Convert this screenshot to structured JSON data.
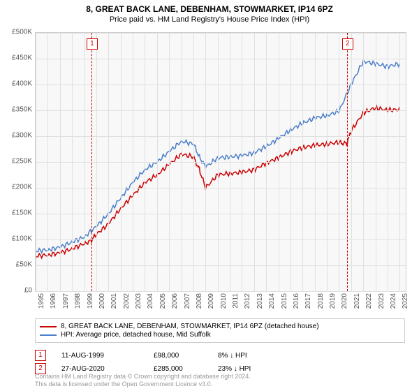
{
  "title": "8, GREAT BACK LANE, DEBENHAM, STOWMARKET, IP14 6PZ",
  "subtitle": "Price paid vs. HM Land Registry's House Price Index (HPI)",
  "chart": {
    "type": "line",
    "background_color": "#f8f8f8",
    "grid_color": "#e0e0e0",
    "border_color": "#cccccc",
    "xlim": [
      1995,
      2025.5
    ],
    "ylim": [
      0,
      500000
    ],
    "ytick_step": 50000,
    "yticks": [
      "£0",
      "£50K",
      "£100K",
      "£150K",
      "£200K",
      "£250K",
      "£300K",
      "£350K",
      "£400K",
      "£450K",
      "£500K"
    ],
    "xticks": [
      1995,
      1996,
      1997,
      1998,
      1999,
      2000,
      2001,
      2002,
      2003,
      2004,
      2005,
      2006,
      2007,
      2008,
      2009,
      2010,
      2011,
      2012,
      2013,
      2014,
      2015,
      2016,
      2017,
      2018,
      2019,
      2020,
      2021,
      2022,
      2023,
      2024,
      2025
    ],
    "series": [
      {
        "name": "property",
        "label": "8, GREAT BACK LANE, DEBENHAM, STOWMARKET, IP14 6PZ (detached house)",
        "color": "#cc0000",
        "line_width": 1.5,
        "x": [
          1995,
          1996,
          1997,
          1998,
          1999,
          1999.6,
          2000,
          2001,
          2002,
          2003,
          2004,
          2005,
          2006,
          2007,
          2008,
          2008.5,
          2009,
          2010,
          2011,
          2012,
          2013,
          2014,
          2015,
          2016,
          2017,
          2018,
          2019,
          2020,
          2020.65,
          2021,
          2022,
          2023,
          2024,
          2025
        ],
        "y": [
          68000,
          70000,
          74000,
          82000,
          92000,
          98000,
          110000,
          130000,
          160000,
          185000,
          210000,
          225000,
          245000,
          265000,
          260000,
          235000,
          200000,
          225000,
          228000,
          230000,
          235000,
          248000,
          258000,
          270000,
          278000,
          282000,
          285000,
          288000,
          285000,
          310000,
          345000,
          355000,
          350000,
          352000
        ]
      },
      {
        "name": "hpi",
        "label": "HPI: Average price, detached house, Mid Suffolk",
        "color": "#4a7fc9",
        "line_width": 1.5,
        "x": [
          1995,
          1996,
          1997,
          1998,
          1999,
          2000,
          2001,
          2002,
          2003,
          2004,
          2005,
          2006,
          2007,
          2008,
          2008.5,
          2009,
          2010,
          2011,
          2012,
          2013,
          2014,
          2015,
          2016,
          2017,
          2018,
          2019,
          2020,
          2021,
          2022,
          2023,
          2024,
          2025
        ],
        "y": [
          78000,
          80000,
          85000,
          95000,
          105000,
          125000,
          150000,
          180000,
          210000,
          235000,
          250000,
          270000,
          290000,
          285000,
          260000,
          240000,
          258000,
          260000,
          262000,
          268000,
          280000,
          295000,
          312000,
          325000,
          335000,
          340000,
          348000,
          400000,
          445000,
          440000,
          435000,
          440000
        ]
      }
    ],
    "markers": [
      {
        "id": "1",
        "x": 1999.6,
        "color": "#cc0000"
      },
      {
        "id": "2",
        "x": 2020.65,
        "color": "#cc0000"
      }
    ]
  },
  "legend": {
    "border_color": "#cccccc"
  },
  "sales": [
    {
      "id": "1",
      "date": "11-AUG-1999",
      "price": "£98,000",
      "diff": "8% ↓ HPI"
    },
    {
      "id": "2",
      "date": "27-AUG-2020",
      "price": "£285,000",
      "diff": "23% ↓ HPI"
    }
  ],
  "footer_line1": "Contains HM Land Registry data © Crown copyright and database right 2024.",
  "footer_line2": "This data is licensed under the Open Government Licence v3.0."
}
